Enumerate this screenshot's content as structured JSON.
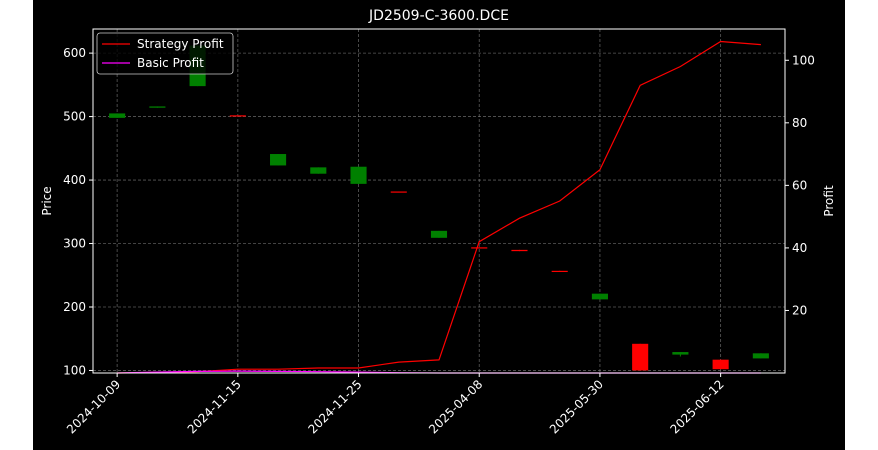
{
  "chart_data": {
    "type": "candlestick+line",
    "title": "JD2509-C-3600.DCE",
    "xlabel": "",
    "ylabel_left": "Price",
    "ylabel_right": "Profit",
    "ylim_left": [
      96,
      638
    ],
    "ylim_right": [
      0,
      110
    ],
    "left_ticks": [
      100,
      200,
      300,
      400,
      500,
      600
    ],
    "right_ticks": [
      20,
      40,
      60,
      80,
      100
    ],
    "x_ticks": [
      {
        "index": 0,
        "label": "2024-10-09"
      },
      {
        "index": 3,
        "label": "2024-11-15"
      },
      {
        "index": 6,
        "label": "2024-11-25"
      },
      {
        "index": 9,
        "label": "2025-04-08"
      },
      {
        "index": 12,
        "label": "2025-05-30"
      },
      {
        "index": 15,
        "label": "2025-06-12"
      }
    ],
    "x_range": [
      -0.6,
      16.6
    ],
    "grid": true,
    "legend_position": "top-left",
    "background": "#000000",
    "colors": {
      "up": "#008000",
      "down": "#ff0000",
      "strategy": "#ff0000",
      "basic": "#ff00ff",
      "axes": "#ffffff",
      "grid": "#808080"
    },
    "candles": [
      {
        "i": 0,
        "open": 498,
        "close": 505,
        "high": 505,
        "low": 498
      },
      {
        "i": 1,
        "open": 514,
        "close": 516,
        "high": 516,
        "low": 514
      },
      {
        "i": 2,
        "open": 548,
        "close": 612,
        "high": 612,
        "low": 548
      },
      {
        "i": 3,
        "open": 502,
        "close": 501,
        "high": 502,
        "low": 501
      },
      {
        "i": 4,
        "open": 423,
        "close": 441,
        "high": 441,
        "low": 423
      },
      {
        "i": 5,
        "open": 410,
        "close": 420,
        "high": 420,
        "low": 410
      },
      {
        "i": 6,
        "open": 394,
        "close": 421,
        "high": 421,
        "low": 394
      },
      {
        "i": 7,
        "open": 382,
        "close": 381,
        "high": 382,
        "low": 381
      },
      {
        "i": 8,
        "open": 309,
        "close": 320,
        "high": 320,
        "low": 309
      },
      {
        "i": 9,
        "open": 294,
        "close": 293,
        "high": 294,
        "low": 293
      },
      {
        "i": 10,
        "open": 290,
        "close": 288,
        "high": 290,
        "low": 288
      },
      {
        "i": 11,
        "open": 257,
        "close": 256,
        "high": 257,
        "low": 256
      },
      {
        "i": 12,
        "open": 212,
        "close": 221,
        "high": 221,
        "low": 212
      },
      {
        "i": 13,
        "open": 142,
        "close": 100,
        "high": 142,
        "low": 100
      },
      {
        "i": 14,
        "open": 125,
        "close": 129,
        "high": 129,
        "low": 122
      },
      {
        "i": 15,
        "open": 117,
        "close": 102,
        "high": 117,
        "low": 102
      },
      {
        "i": 16,
        "open": 119,
        "close": 127,
        "high": 127,
        "low": 119
      }
    ],
    "series": [
      {
        "name": "Strategy Profit",
        "axis": "right",
        "x": [
          0,
          1,
          2,
          3,
          4,
          5,
          6,
          7,
          8,
          9,
          10,
          11,
          12,
          13,
          14,
          15,
          16
        ],
        "values": [
          0,
          0.2,
          0.4,
          1.2,
          1.2,
          1.6,
          1.6,
          3.5,
          4.2,
          42,
          49.5,
          55,
          65,
          92,
          98,
          106,
          105
        ]
      },
      {
        "name": "Basic Profit",
        "axis": "right",
        "x": [
          0,
          1,
          2,
          3,
          4,
          5,
          6,
          7,
          8,
          9,
          10,
          11,
          12,
          13,
          14,
          15,
          16
        ],
        "values": [
          0,
          0.3,
          0.5,
          0.6,
          0.5,
          0.4,
          0.3,
          0.1,
          0,
          0,
          0,
          0,
          0,
          0,
          0,
          0,
          0
        ]
      }
    ]
  }
}
